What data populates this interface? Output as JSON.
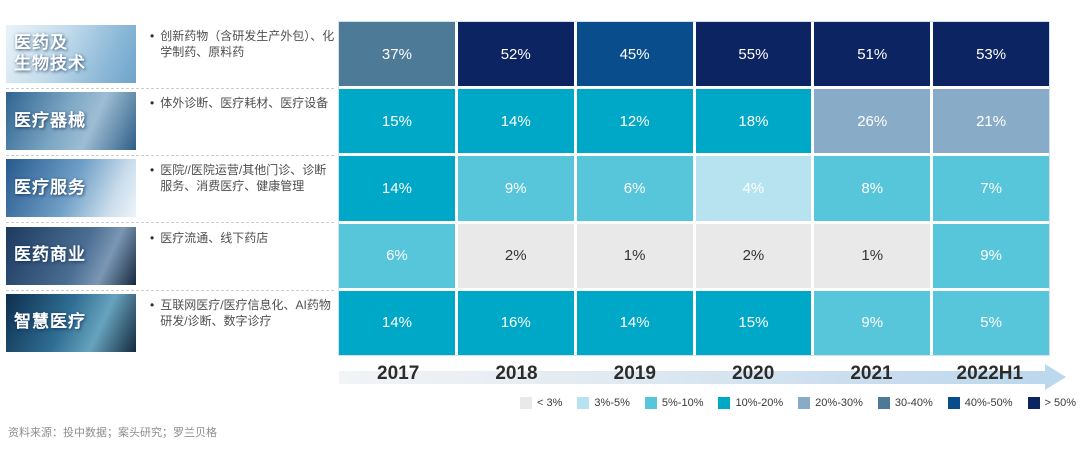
{
  "chart_data": {
    "type": "heatmap",
    "unit": "%",
    "columns": [
      "2017",
      "2018",
      "2019",
      "2020",
      "2021",
      "2022H1"
    ],
    "rows": [
      {
        "label": "医药及生物技术",
        "label_lines": [
          "医药及",
          "生物技术"
        ],
        "description": "创新药物（含研发生产外包）、化学制药、原料药",
        "values": [
          37,
          52,
          45,
          55,
          51,
          53
        ]
      },
      {
        "label": "医疗器械",
        "label_lines": [
          "医疗器械"
        ],
        "description": "体外诊断、医疗耗材、医疗设备",
        "values": [
          15,
          14,
          12,
          18,
          26,
          21
        ]
      },
      {
        "label": "医疗服务",
        "label_lines": [
          "医疗服务"
        ],
        "description": "医院//医院运营/其他门诊、诊断服务、消费医疗、健康管理",
        "values": [
          14,
          9,
          6,
          4,
          8,
          7
        ]
      },
      {
        "label": "医药商业",
        "label_lines": [
          "医药商业"
        ],
        "description": "医疗流通、线下药店",
        "values": [
          6,
          2,
          1,
          2,
          1,
          9
        ]
      },
      {
        "label": "智慧医疗",
        "label_lines": [
          "智慧医疗"
        ],
        "description": "互联网医疗/医疗信息化、AI药物研发/诊断、数字诊疗",
        "values": [
          14,
          16,
          14,
          15,
          9,
          5
        ]
      }
    ],
    "bins": [
      {
        "label": "< 3%",
        "max": 3,
        "color": "#e9e9ea",
        "text_color": "#333333"
      },
      {
        "label": "3%-5%",
        "max": 5,
        "color": "#b7e3f0",
        "text_color": "#ffffff"
      },
      {
        "label": "5%-10%",
        "max": 10,
        "color": "#57c5da",
        "text_color": "#ffffff"
      },
      {
        "label": "10%-20%",
        "max": 20,
        "color": "#00a8c8",
        "text_color": "#ffffff"
      },
      {
        "label": "20%-30%",
        "max": 30,
        "color": "#88acc7",
        "text_color": "#ffffff"
      },
      {
        "label": "30-40%",
        "max": 40,
        "color": "#4d7a97",
        "text_color": "#ffffff"
      },
      {
        "label": "40%-50%",
        "max": 50,
        "color": "#0a4d8c",
        "text_color": "#ffffff"
      },
      {
        "label": "> 50%",
        "max": 100,
        "color": "#0d2462",
        "text_color": "#ffffff"
      }
    ],
    "legend_position": "bottom-right",
    "grid": false
  },
  "footer": {
    "source_note": "资料来源：投中数据；案头研究；罗兰贝格"
  }
}
